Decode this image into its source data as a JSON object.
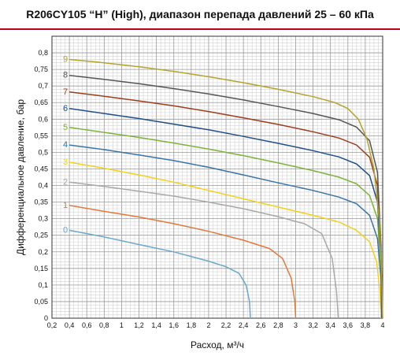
{
  "title": "R206CY105 “H” (High), диапазон перепада давлений 25 – 60 кПа",
  "chart_data": {
    "type": "line",
    "title": "R206CY105 “H” (High), диапазон перепада давлений 25 – 60 кПа",
    "xlabel": "Расход, м³/ч",
    "ylabel": "Дифференциальное давление, бар",
    "xlim": [
      0.2,
      4.0
    ],
    "ylim": [
      0,
      0.85
    ],
    "x_ticks": [
      "0,2",
      "0,4",
      "0,6",
      "0,8",
      "1",
      "1,2",
      "1,4",
      "1,6",
      "1,8",
      "2",
      "2,2",
      "2,4",
      "2,6",
      "2,8",
      "3",
      "3,2",
      "3,4",
      "3,6",
      "3,8",
      "4"
    ],
    "y_ticks": [
      "0",
      "0,05",
      "0,1",
      "0,15",
      "0,2",
      "0,25",
      "0,3",
      "0,35",
      "0,4",
      "0,45",
      "0,5",
      "0,55",
      "0,6",
      "0,65",
      "0,7",
      "0,75",
      "0,8"
    ],
    "grid": true,
    "series": [
      {
        "name": "0",
        "color": "#6aa7c9",
        "points": [
          [
            0.4,
            0.265
          ],
          [
            0.8,
            0.245
          ],
          [
            1.2,
            0.222
          ],
          [
            1.6,
            0.2
          ],
          [
            2.0,
            0.172
          ],
          [
            2.2,
            0.155
          ],
          [
            2.35,
            0.135
          ],
          [
            2.43,
            0.1
          ],
          [
            2.47,
            0.05
          ],
          [
            2.48,
            0.0
          ]
        ]
      },
      {
        "name": "1",
        "color": "#e07a3a",
        "points": [
          [
            0.4,
            0.34
          ],
          [
            0.8,
            0.322
          ],
          [
            1.2,
            0.305
          ],
          [
            1.6,
            0.285
          ],
          [
            2.0,
            0.262
          ],
          [
            2.4,
            0.235
          ],
          [
            2.7,
            0.21
          ],
          [
            2.85,
            0.18
          ],
          [
            2.95,
            0.12
          ],
          [
            2.99,
            0.05
          ],
          [
            3.0,
            0.0
          ]
        ]
      },
      {
        "name": "2",
        "color": "#a8a8a8",
        "points": [
          [
            0.4,
            0.41
          ],
          [
            0.8,
            0.397
          ],
          [
            1.2,
            0.383
          ],
          [
            1.6,
            0.368
          ],
          [
            2.0,
            0.35
          ],
          [
            2.4,
            0.33
          ],
          [
            2.8,
            0.306
          ],
          [
            3.1,
            0.285
          ],
          [
            3.3,
            0.255
          ],
          [
            3.42,
            0.18
          ],
          [
            3.47,
            0.08
          ],
          [
            3.49,
            0.0
          ]
        ]
      },
      {
        "name": "3",
        "color": "#f2d21b",
        "points": [
          [
            0.4,
            0.47
          ],
          [
            0.8,
            0.452
          ],
          [
            1.2,
            0.432
          ],
          [
            1.6,
            0.41
          ],
          [
            2.0,
            0.385
          ],
          [
            2.4,
            0.36
          ],
          [
            2.8,
            0.335
          ],
          [
            3.2,
            0.31
          ],
          [
            3.5,
            0.29
          ],
          [
            3.7,
            0.265
          ],
          [
            3.85,
            0.23
          ],
          [
            3.93,
            0.17
          ],
          [
            3.97,
            0.08
          ],
          [
            3.98,
            0.0
          ]
        ]
      },
      {
        "name": "4",
        "color": "#3a74a6",
        "points": [
          [
            0.4,
            0.522
          ],
          [
            0.8,
            0.508
          ],
          [
            1.2,
            0.492
          ],
          [
            1.6,
            0.475
          ],
          [
            2.0,
            0.455
          ],
          [
            2.4,
            0.432
          ],
          [
            2.8,
            0.408
          ],
          [
            3.2,
            0.385
          ],
          [
            3.5,
            0.365
          ],
          [
            3.7,
            0.345
          ],
          [
            3.85,
            0.31
          ],
          [
            3.94,
            0.24
          ],
          [
            3.98,
            0.12
          ],
          [
            3.99,
            0.0
          ]
        ]
      },
      {
        "name": "5",
        "color": "#7db33b",
        "points": [
          [
            0.4,
            0.575
          ],
          [
            0.8,
            0.56
          ],
          [
            1.2,
            0.545
          ],
          [
            1.6,
            0.528
          ],
          [
            2.0,
            0.51
          ],
          [
            2.4,
            0.49
          ],
          [
            2.8,
            0.468
          ],
          [
            3.2,
            0.445
          ],
          [
            3.5,
            0.425
          ],
          [
            3.7,
            0.405
          ],
          [
            3.85,
            0.37
          ],
          [
            3.94,
            0.3
          ],
          [
            3.98,
            0.15
          ],
          [
            3.99,
            0.0
          ]
        ]
      },
      {
        "name": "6",
        "color": "#1f4f86",
        "points": [
          [
            0.4,
            0.632
          ],
          [
            0.8,
            0.617
          ],
          [
            1.2,
            0.602
          ],
          [
            1.6,
            0.585
          ],
          [
            2.0,
            0.568
          ],
          [
            2.4,
            0.548
          ],
          [
            2.8,
            0.527
          ],
          [
            3.2,
            0.505
          ],
          [
            3.5,
            0.486
          ],
          [
            3.7,
            0.465
          ],
          [
            3.85,
            0.43
          ],
          [
            3.94,
            0.35
          ],
          [
            3.98,
            0.18
          ],
          [
            3.99,
            0.0
          ]
        ]
      },
      {
        "name": "7",
        "color": "#9c3d1c",
        "points": [
          [
            0.4,
            0.682
          ],
          [
            0.8,
            0.669
          ],
          [
            1.2,
            0.655
          ],
          [
            1.6,
            0.64
          ],
          [
            2.0,
            0.623
          ],
          [
            2.4,
            0.604
          ],
          [
            2.8,
            0.584
          ],
          [
            3.2,
            0.562
          ],
          [
            3.5,
            0.543
          ],
          [
            3.7,
            0.522
          ],
          [
            3.85,
            0.485
          ],
          [
            3.94,
            0.4
          ],
          [
            3.98,
            0.2
          ],
          [
            3.99,
            0.0
          ]
        ]
      },
      {
        "name": "8",
        "color": "#555555",
        "points": [
          [
            0.4,
            0.732
          ],
          [
            0.8,
            0.72
          ],
          [
            1.2,
            0.707
          ],
          [
            1.6,
            0.692
          ],
          [
            2.0,
            0.676
          ],
          [
            2.4,
            0.658
          ],
          [
            2.8,
            0.638
          ],
          [
            3.2,
            0.617
          ],
          [
            3.5,
            0.598
          ],
          [
            3.7,
            0.576
          ],
          [
            3.85,
            0.535
          ],
          [
            3.94,
            0.44
          ],
          [
            3.98,
            0.22
          ],
          [
            3.99,
            0.0
          ]
        ]
      },
      {
        "name": "9",
        "color": "#b5a32a",
        "points": [
          [
            0.4,
            0.78
          ],
          [
            0.8,
            0.77
          ],
          [
            1.2,
            0.758
          ],
          [
            1.6,
            0.744
          ],
          [
            2.0,
            0.728
          ],
          [
            2.4,
            0.71
          ],
          [
            2.8,
            0.69
          ],
          [
            3.2,
            0.668
          ],
          [
            3.45,
            0.65
          ],
          [
            3.6,
            0.632
          ],
          [
            3.72,
            0.6
          ],
          [
            3.82,
            0.54
          ],
          [
            3.9,
            0.45
          ],
          [
            3.96,
            0.3
          ],
          [
            3.99,
            0.12
          ],
          [
            4.0,
            0.0
          ]
        ]
      }
    ]
  }
}
